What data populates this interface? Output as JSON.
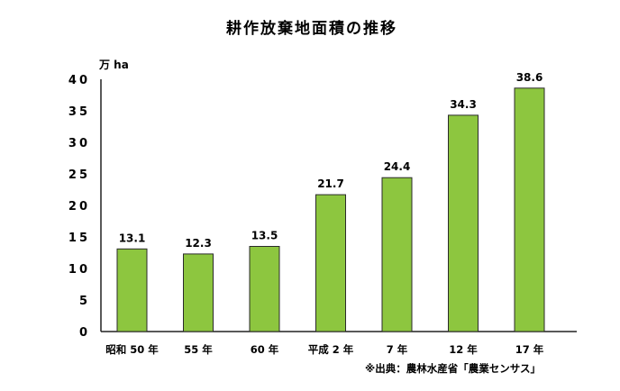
{
  "chart_data": {
    "type": "bar",
    "title": "耕作放棄地面積の推移",
    "unit_label": "万 ha",
    "categories": [
      "昭和 50 年",
      "55 年",
      "60 年",
      "平成 2 年",
      "7 年",
      "12 年",
      "17 年"
    ],
    "values": [
      13.1,
      12.3,
      13.5,
      21.7,
      24.4,
      34.3,
      38.6
    ],
    "value_labels": [
      "13.1",
      "12.3",
      "13.5",
      "21.7",
      "24.4",
      "34.3",
      "38.6"
    ],
    "ylim": [
      0,
      40
    ],
    "yticks": [
      0,
      5,
      10,
      15,
      20,
      25,
      30,
      35,
      40
    ],
    "ytick_labels": [
      "0",
      "5",
      "10",
      "15",
      "20",
      "25",
      "30",
      "35",
      "40"
    ],
    "grid": false,
    "bar_color": "#8dc63f",
    "bar_edge_color": "#2a2a2a",
    "source_note": "※出典：農林水産省「農業センサス」"
  }
}
